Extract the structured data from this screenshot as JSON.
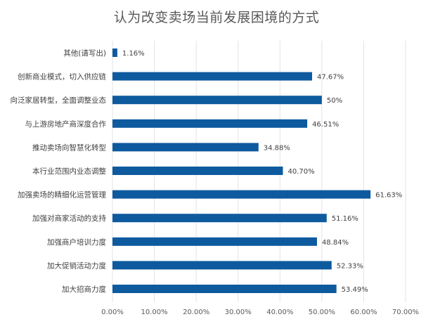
{
  "chart_data": {
    "type": "bar",
    "orientation": "horizontal",
    "title": "认为改变卖场当前发展困境的方式",
    "xlabel": "",
    "ylabel": "",
    "categories": [
      "其他(请写出)",
      "创新商业模式，切入供应链",
      "向泛家居转型，全面调整业态",
      "与上游房地产商深度合作",
      "推动卖场向智慧化转型",
      "本行业范围内业态调整",
      "加强卖场的精细化运营管理",
      "加强对商家活动的支持",
      "加强商户培训力度",
      "加大促销活动力度",
      "加大招商力度"
    ],
    "values": [
      1.16,
      47.67,
      50,
      46.51,
      34.88,
      40.7,
      61.63,
      51.16,
      48.84,
      52.33,
      53.49
    ],
    "value_labels": [
      "1.16%",
      "47.67%",
      "50%",
      "46.51%",
      "34.88%",
      "40.70%",
      "61.63%",
      "51.16%",
      "48.84%",
      "52.33%",
      "53.49%"
    ],
    "xlim": [
      0,
      70
    ],
    "x_ticks": [
      0,
      10,
      20,
      30,
      40,
      50,
      60,
      70
    ],
    "x_tick_labels": [
      "0.00%",
      "10.00%",
      "20.00%",
      "30.00%",
      "40.00%",
      "50.00%",
      "60.00%",
      "70.00%"
    ],
    "grid": true,
    "bar_color": "#0e5a9e"
  }
}
